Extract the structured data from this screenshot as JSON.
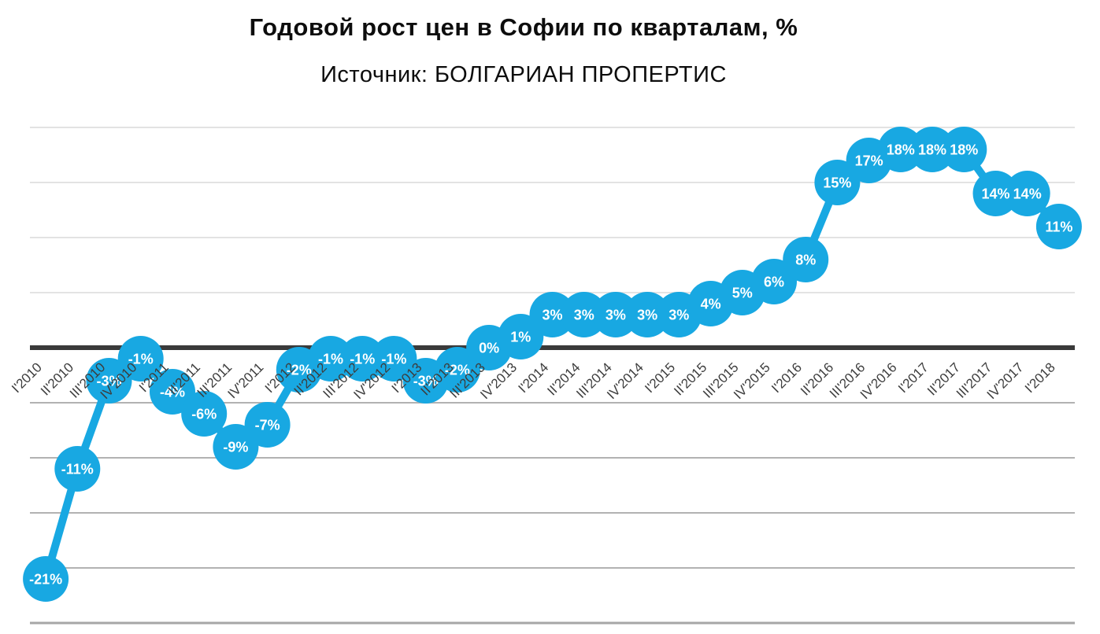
{
  "title": "Годовой рост цен в Софии по кварталам, %",
  "subtitle": "Источник: БОЛГАРИАН ПРОПЕРТИС",
  "chart_data": {
    "type": "line",
    "title": "Годовой рост цен в Софии по кварталам, %",
    "subtitle": "Источник: БОЛГАРИАН ПРОПЕРТИС",
    "xlabel": "",
    "ylabel": "",
    "categories": [
      "I'2010",
      "II'2010",
      "III'2010",
      "IV'2010",
      "I'2011",
      "II'2011",
      "III'2011",
      "IV'2011",
      "I'2012",
      "II'2012",
      "III'2012",
      "IV'2012",
      "I'2013",
      "II'2013",
      "III'2013",
      "IV'2013",
      "I'2014",
      "II'2014",
      "III'2014",
      "IV'2014",
      "I'2015",
      "II'2015",
      "III'2015",
      "IV'2015",
      "I'2016",
      "II'2016",
      "III'2016",
      "IV'2016",
      "I'2017",
      "II'2017",
      "III'2017",
      "IV'2017",
      "I'2018"
    ],
    "values": [
      -21,
      -11,
      -3,
      -1,
      -4,
      -6,
      -9,
      -7,
      -2,
      -1,
      -1,
      -1,
      -3,
      -2,
      0,
      1,
      3,
      3,
      3,
      3,
      3,
      4,
      5,
      6,
      8,
      15,
      17,
      18,
      18,
      18,
      14,
      14,
      11
    ],
    "point_labels": [
      "-21%",
      "-11%",
      "-3%",
      "-1%",
      "-4%",
      "-6%",
      "-9%",
      "-7%",
      "-2%",
      "-1%",
      "-1%",
      "-1%",
      "-3%",
      "-2%",
      "0%",
      "1%",
      "3%",
      "3%",
      "3%",
      "3%",
      "3%",
      "4%",
      "5%",
      "6%",
      "8%",
      "15%",
      "17%",
      "18%",
      "18%",
      "18%",
      "14%",
      "14%",
      "11%"
    ],
    "ylim": [
      -25,
      20
    ],
    "gridline_step": 5,
    "grid": true,
    "legend": "none",
    "y_tick_labels_visible": false,
    "colors": {
      "series": "#18a8e2",
      "point_fill": "#18a8e2",
      "point_label_text": "#ffffff",
      "axis_label_text": "#3d3d3d",
      "zero_line": "#3a3a3a",
      "grid_above_zero": "#e3e3e3",
      "grid_below_zero": "#b2b2b2",
      "grid_bottom": "#a6a6a6",
      "title_text": "#0d0d0d",
      "background": "#ffffff"
    }
  }
}
